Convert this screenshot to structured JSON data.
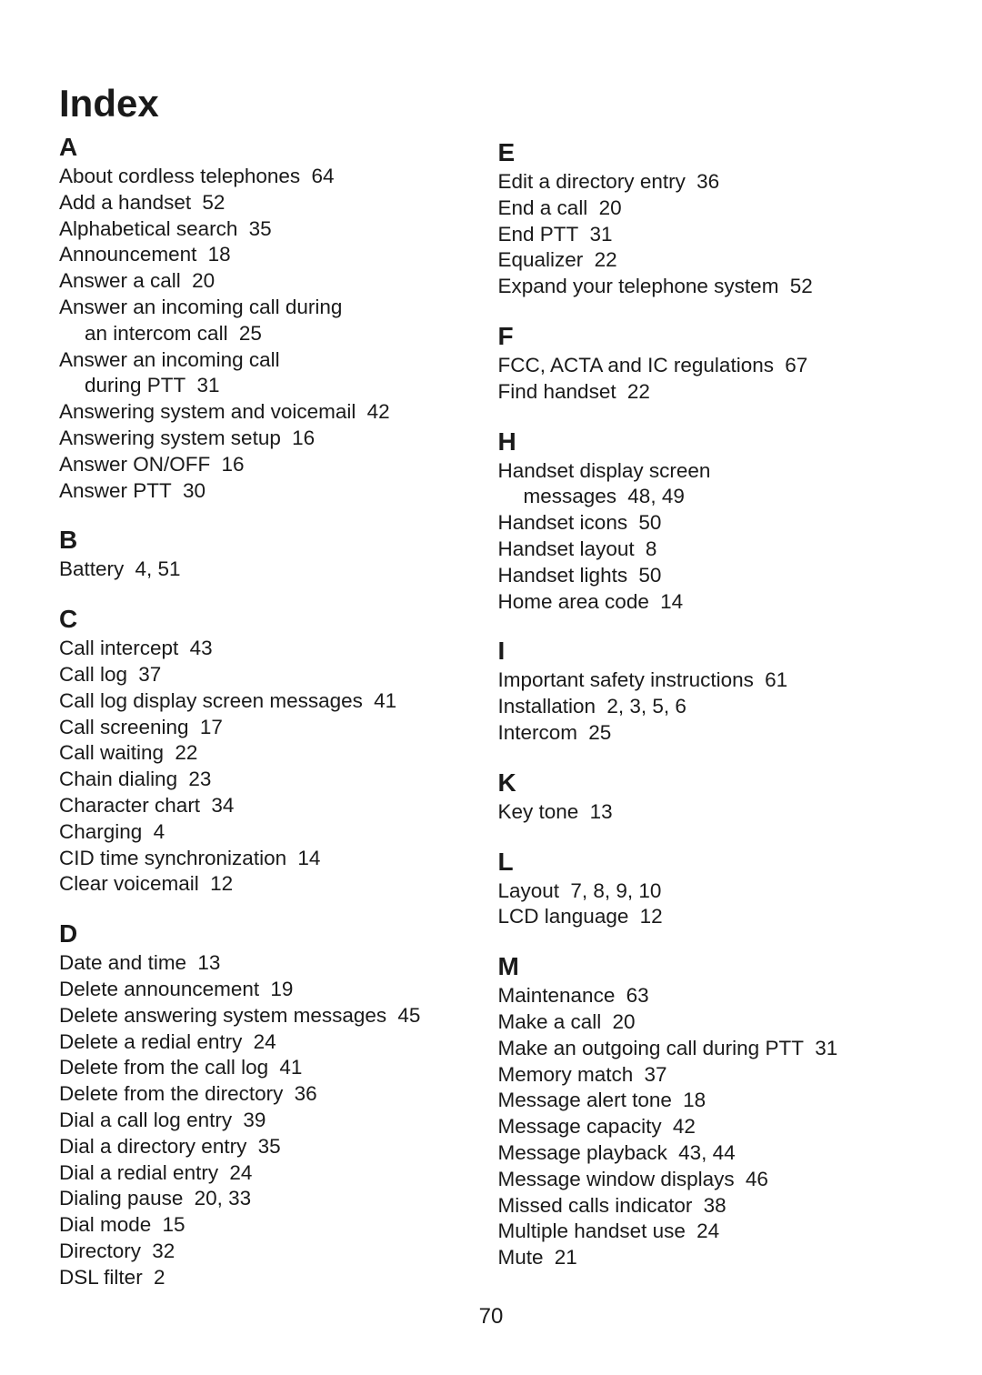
{
  "title": "Index",
  "pageNumber": "70",
  "columns": [
    {
      "sections": [
        {
          "letter": "A",
          "entries": [
            {
              "text": "About cordless telephones",
              "page": "64"
            },
            {
              "text": "Add a handset",
              "page": "52"
            },
            {
              "text": "Alphabetical search",
              "page": "35"
            },
            {
              "text": "Announcement",
              "page": "18"
            },
            {
              "text": "Answer a call",
              "page": "20"
            },
            {
              "text": "Answer an incoming call during",
              "continuation": "an intercom call",
              "page": "25"
            },
            {
              "text": "Answer an incoming call",
              "continuation": "during PTT",
              "page": "31"
            },
            {
              "text": "Answering system and voicemail",
              "page": "42"
            },
            {
              "text": "Answering system setup",
              "page": "16"
            },
            {
              "text": "Answer ON/OFF",
              "page": "16"
            },
            {
              "text": "Answer PTT",
              "page": "30"
            }
          ]
        },
        {
          "letter": "B",
          "entries": [
            {
              "text": "Battery",
              "page": "4, 51"
            }
          ]
        },
        {
          "letter": "C",
          "entries": [
            {
              "text": "Call intercept",
              "page": "43"
            },
            {
              "text": "Call log",
              "page": "37"
            },
            {
              "text": "Call log display screen messages",
              "page": "41"
            },
            {
              "text": "Call screening",
              "page": "17"
            },
            {
              "text": "Call waiting",
              "page": "22"
            },
            {
              "text": "Chain dialing",
              "page": "23"
            },
            {
              "text": "Character chart",
              "page": "34"
            },
            {
              "text": "Charging",
              "page": "4"
            },
            {
              "text": "CID time synchronization",
              "page": "14"
            },
            {
              "text": "Clear voicemail",
              "page": "12"
            }
          ]
        },
        {
          "letter": "D",
          "entries": [
            {
              "text": "Date and time",
              "page": "13"
            },
            {
              "text": "Delete announcement",
              "page": "19"
            },
            {
              "text": "Delete answering system messages",
              "page": "45"
            },
            {
              "text": "Delete a redial entry",
              "page": "24"
            },
            {
              "text": "Delete from the call log",
              "page": "41"
            },
            {
              "text": "Delete from the directory",
              "page": "36"
            },
            {
              "text": "Dial a call log entry",
              "page": "39"
            },
            {
              "text": "Dial a directory entry",
              "page": "35"
            },
            {
              "text": "Dial a redial entry",
              "page": "24"
            },
            {
              "text": "Dialing pause",
              "page": "20, 33"
            },
            {
              "text": "Dial mode",
              "page": "15"
            },
            {
              "text": "Directory",
              "page": "32"
            },
            {
              "text": "DSL filter",
              "page": "2"
            }
          ]
        }
      ]
    },
    {
      "sections": [
        {
          "letter": "E",
          "entries": [
            {
              "text": "Edit a directory entry",
              "page": "36"
            },
            {
              "text": "End a call",
              "page": "20"
            },
            {
              "text": "End PTT",
              "page": "31"
            },
            {
              "text": "Equalizer",
              "page": "22"
            },
            {
              "text": "Expand your telephone system",
              "page": "52"
            }
          ]
        },
        {
          "letter": "F",
          "entries": [
            {
              "text": "FCC, ACTA and IC regulations",
              "page": "67"
            },
            {
              "text": "Find handset",
              "page": "22"
            }
          ]
        },
        {
          "letter": "H",
          "entries": [
            {
              "text": "Handset display screen",
              "continuation": "messages",
              "page": "48, 49"
            },
            {
              "text": "Handset icons",
              "page": "50"
            },
            {
              "text": "Handset layout",
              "page": "8"
            },
            {
              "text": "Handset lights",
              "page": "50"
            },
            {
              "text": "Home area code",
              "page": "14"
            }
          ]
        },
        {
          "letter": "I",
          "entries": [
            {
              "text": "Important safety instructions",
              "page": "61"
            },
            {
              "text": "Installation",
              "page": "2, 3, 5, 6"
            },
            {
              "text": "Intercom",
              "page": "25"
            }
          ]
        },
        {
          "letter": "K",
          "entries": [
            {
              "text": "Key tone",
              "page": "13"
            }
          ]
        },
        {
          "letter": "L",
          "entries": [
            {
              "text": "Layout",
              "page": "7, 8, 9, 10"
            },
            {
              "text": "LCD language",
              "page": "12"
            }
          ]
        },
        {
          "letter": "M",
          "entries": [
            {
              "text": "Maintenance",
              "page": "63"
            },
            {
              "text": "Make a call",
              "page": "20"
            },
            {
              "text": "Make an outgoing call during PTT",
              "page": "31"
            },
            {
              "text": "Memory match",
              "page": "37"
            },
            {
              "text": "Message alert tone",
              "page": "18"
            },
            {
              "text": "Message capacity",
              "page": "42"
            },
            {
              "text": "Message playback",
              "page": "43, 44"
            },
            {
              "text": "Message window displays",
              "page": "46"
            },
            {
              "text": "Missed calls indicator",
              "page": "38"
            },
            {
              "text": "Multiple handset use",
              "page": "24"
            },
            {
              "text": "Mute",
              "page": "21"
            }
          ]
        }
      ]
    }
  ]
}
